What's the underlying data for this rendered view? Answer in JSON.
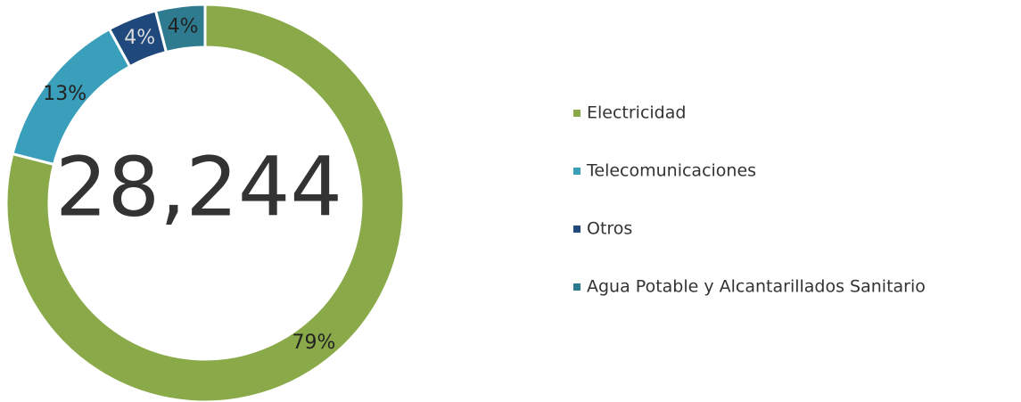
{
  "chart_data": {
    "type": "donut",
    "center_label": "28,244",
    "categories": [
      "Electricidad",
      "Telecomunicaciones",
      "Otros",
      "Agua Potable y Alcantarillados Sanitario"
    ],
    "values": [
      79,
      13,
      4,
      4
    ],
    "value_labels": [
      "79%",
      "13%",
      "4%",
      "4%"
    ],
    "colors": [
      "#8aaa4a",
      "#3a9fba",
      "#1f497d",
      "#2e7b8f"
    ],
    "legend": "right"
  }
}
